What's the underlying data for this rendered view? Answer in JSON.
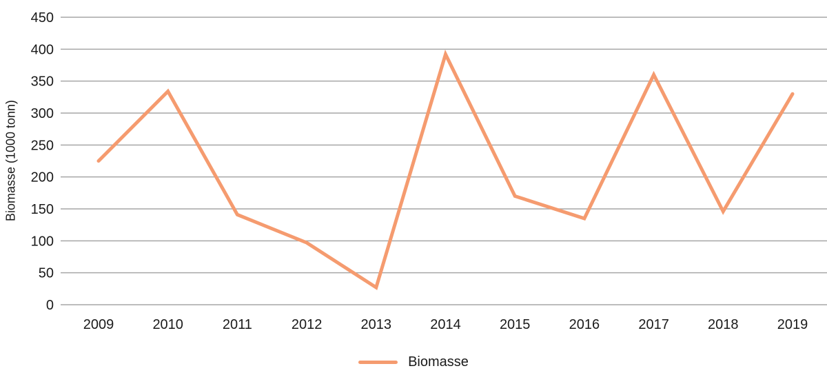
{
  "chart_data": {
    "type": "line",
    "title": "",
    "xlabel": "",
    "ylabel": "Biomasse (1000 tonn)",
    "categories": [
      "2009",
      "2010",
      "2011",
      "2012",
      "2013",
      "2014",
      "2015",
      "2016",
      "2017",
      "2018",
      "2019"
    ],
    "series": [
      {
        "name": "Biomasse",
        "color": "#F59B6F",
        "values": [
          225,
          334,
          141,
          97,
          27,
          392,
          170,
          135,
          360,
          146,
          330
        ]
      }
    ],
    "ylim": [
      0,
      450
    ],
    "ytick_step": 50,
    "yticks": [
      0,
      50,
      100,
      150,
      200,
      250,
      300,
      350,
      400,
      450
    ],
    "grid": "horizontal-only",
    "legend_position": "bottom-center",
    "legend_entries": [
      "Biomasse"
    ]
  },
  "colors": {
    "series_line": "#F59B6F",
    "gridline": "#A6A6A6",
    "text": "#1A1A1A",
    "background": "#FFFFFF"
  }
}
